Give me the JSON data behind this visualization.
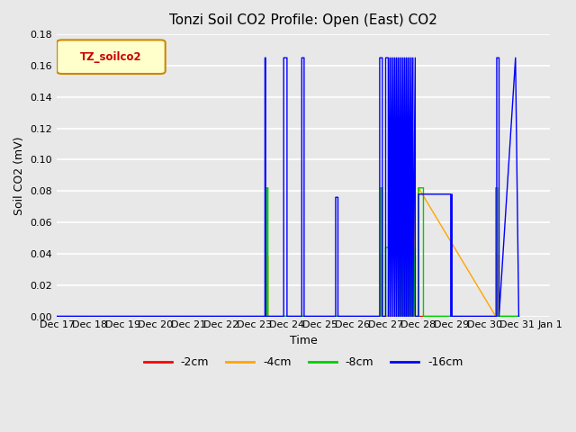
{
  "title": "Tonzi Soil CO2 Profile: Open (East) CO2",
  "ylabel": "Soil CO2 (mV)",
  "xlabel": "Time",
  "legend_label": "TZ_soilco2",
  "ylim": [
    0.0,
    0.18
  ],
  "yticks": [
    0.0,
    0.02,
    0.04,
    0.06,
    0.08,
    0.1,
    0.12,
    0.14,
    0.16,
    0.18
  ],
  "colors": {
    "-2cm": "#ff0000",
    "-4cm": "#ffa500",
    "-8cm": "#00cc00",
    "-16cm": "#0000ff"
  },
  "series": {
    "-2cm": {
      "x": [
        17.0,
        23.3,
        23.3,
        23.32,
        23.32,
        23.9,
        23.9,
        26.85,
        26.85,
        26.9,
        26.9,
        27.4,
        27.4,
        27.45,
        27.45,
        27.5,
        27.5,
        27.55,
        27.55,
        27.6,
        27.6,
        27.65,
        27.65,
        27.7,
        27.7,
        27.75,
        27.75,
        27.8,
        27.8,
        27.85,
        27.85,
        27.9,
        27.9,
        30.35,
        30.35,
        30.4,
        30.4,
        31.05
      ],
      "y": [
        0.0,
        0.0,
        0.0,
        0.0,
        0.0,
        0.0,
        0.0,
        0.0,
        0.039,
        0.039,
        0.0,
        0.0,
        0.039,
        0.039,
        0.0,
        0.039,
        0.0,
        0.039,
        0.0,
        0.039,
        0.0,
        0.039,
        0.0,
        0.039,
        0.0,
        0.039,
        0.0,
        0.039,
        0.0,
        0.039,
        0.0,
        0.039,
        0.0,
        0.0,
        0.039,
        0.039,
        0.0,
        0.0
      ]
    },
    "-4cm": {
      "x": [
        17.0,
        23.38,
        23.38,
        23.42,
        23.42,
        23.9,
        23.9,
        26.85,
        26.85,
        26.9,
        26.9,
        27.4,
        27.4,
        27.45,
        27.45,
        27.5,
        27.5,
        27.55,
        27.55,
        27.6,
        27.6,
        27.65,
        27.65,
        27.7,
        27.7,
        27.75,
        27.75,
        27.8,
        27.8,
        27.85,
        27.85,
        27.9,
        27.9,
        28.0,
        28.0,
        30.35,
        30.35,
        30.4,
        30.4,
        31.05
      ],
      "y": [
        0.0,
        0.0,
        0.038,
        0.038,
        0.0,
        0.0,
        0.0,
        0.0,
        0.082,
        0.082,
        0.0,
        0.0,
        0.082,
        0.082,
        0.0,
        0.082,
        0.0,
        0.082,
        0.0,
        0.082,
        0.0,
        0.082,
        0.0,
        0.082,
        0.0,
        0.082,
        0.0,
        0.082,
        0.0,
        0.082,
        0.0,
        0.082,
        0.0,
        0.0,
        0.082,
        0.0,
        0.082,
        0.082,
        0.0,
        0.0
      ]
    },
    "-8cm": {
      "x": [
        17.0,
        23.38,
        23.38,
        23.42,
        23.42,
        23.9,
        23.9,
        26.85,
        26.85,
        26.9,
        26.9,
        27.0,
        27.0,
        27.4,
        27.4,
        27.45,
        27.45,
        27.5,
        27.5,
        27.55,
        27.55,
        27.6,
        27.6,
        27.65,
        27.65,
        27.7,
        27.7,
        27.75,
        27.75,
        27.8,
        27.8,
        27.85,
        27.85,
        27.9,
        27.9,
        28.0,
        28.0,
        28.15,
        28.15,
        30.35,
        30.35,
        30.4,
        30.4,
        31.05
      ],
      "y": [
        0.0,
        0.0,
        0.082,
        0.082,
        0.0,
        0.0,
        0.0,
        0.0,
        0.082,
        0.082,
        0.0,
        0.0,
        0.044,
        0.044,
        0.0,
        0.082,
        0.0,
        0.082,
        0.0,
        0.082,
        0.0,
        0.082,
        0.0,
        0.082,
        0.0,
        0.082,
        0.0,
        0.082,
        0.0,
        0.044,
        0.0,
        0.082,
        0.0,
        0.044,
        0.0,
        0.0,
        0.082,
        0.082,
        0.0,
        0.0,
        0.082,
        0.082,
        0.0,
        0.0
      ]
    },
    "-16cm": {
      "x": [
        17.0,
        23.33,
        23.33,
        23.35,
        23.35,
        23.9,
        23.9,
        24.0,
        24.0,
        24.45,
        24.45,
        24.52,
        24.52,
        25.48,
        25.48,
        25.55,
        25.55,
        26.82,
        26.82,
        26.9,
        26.9,
        27.0,
        27.0,
        27.08,
        27.08,
        27.13,
        27.13,
        27.18,
        27.18,
        27.23,
        27.23,
        27.28,
        27.28,
        27.33,
        27.33,
        27.38,
        27.38,
        27.43,
        27.43,
        27.48,
        27.48,
        27.53,
        27.53,
        27.58,
        27.58,
        27.63,
        27.63,
        27.68,
        27.68,
        27.73,
        27.73,
        27.78,
        27.78,
        27.83,
        27.83,
        27.9,
        27.9,
        28.0,
        28.0,
        28.98,
        28.98,
        29.02,
        29.02,
        30.38,
        30.38,
        30.45,
        30.45,
        30.95,
        30.95,
        31.05
      ],
      "y": [
        0.0,
        0.0,
        0.165,
        0.165,
        0.0,
        0.0,
        0.165,
        0.165,
        0.0,
        0.0,
        0.165,
        0.165,
        0.0,
        0.0,
        0.076,
        0.076,
        0.0,
        0.0,
        0.165,
        0.165,
        0.0,
        0.0,
        0.165,
        0.165,
        0.0,
        0.165,
        0.0,
        0.165,
        0.0,
        0.165,
        0.0,
        0.165,
        0.0,
        0.165,
        0.0,
        0.165,
        0.0,
        0.165,
        0.0,
        0.165,
        0.0,
        0.165,
        0.0,
        0.165,
        0.0,
        0.165,
        0.0,
        0.165,
        0.0,
        0.165,
        0.0,
        0.165,
        0.0,
        0.165,
        0.0,
        0.165,
        0.0,
        0.0,
        0.078,
        0.078,
        0.0,
        0.078,
        0.0,
        0.0,
        0.165,
        0.165,
        0.0,
        0.165,
        0.165,
        0.0
      ]
    }
  },
  "xtick_positions": [
    17,
    18,
    19,
    20,
    21,
    22,
    23,
    24,
    25,
    26,
    27,
    28,
    29,
    30,
    31,
    32
  ],
  "xtick_labels": [
    "Dec 17",
    "Dec 18",
    "Dec 19",
    "Dec 20",
    "Dec 21",
    "Dec 22",
    "Dec 23",
    "Dec 24",
    "Dec 25",
    "Dec 26",
    "Dec 27",
    "Dec 28",
    "Dec 29",
    "Dec 30",
    "Dec 31",
    "Jan 1"
  ],
  "xlim": [
    17,
    32
  ],
  "legend_entries": [
    "-2cm",
    "-4cm",
    "-8cm",
    "-16cm"
  ]
}
